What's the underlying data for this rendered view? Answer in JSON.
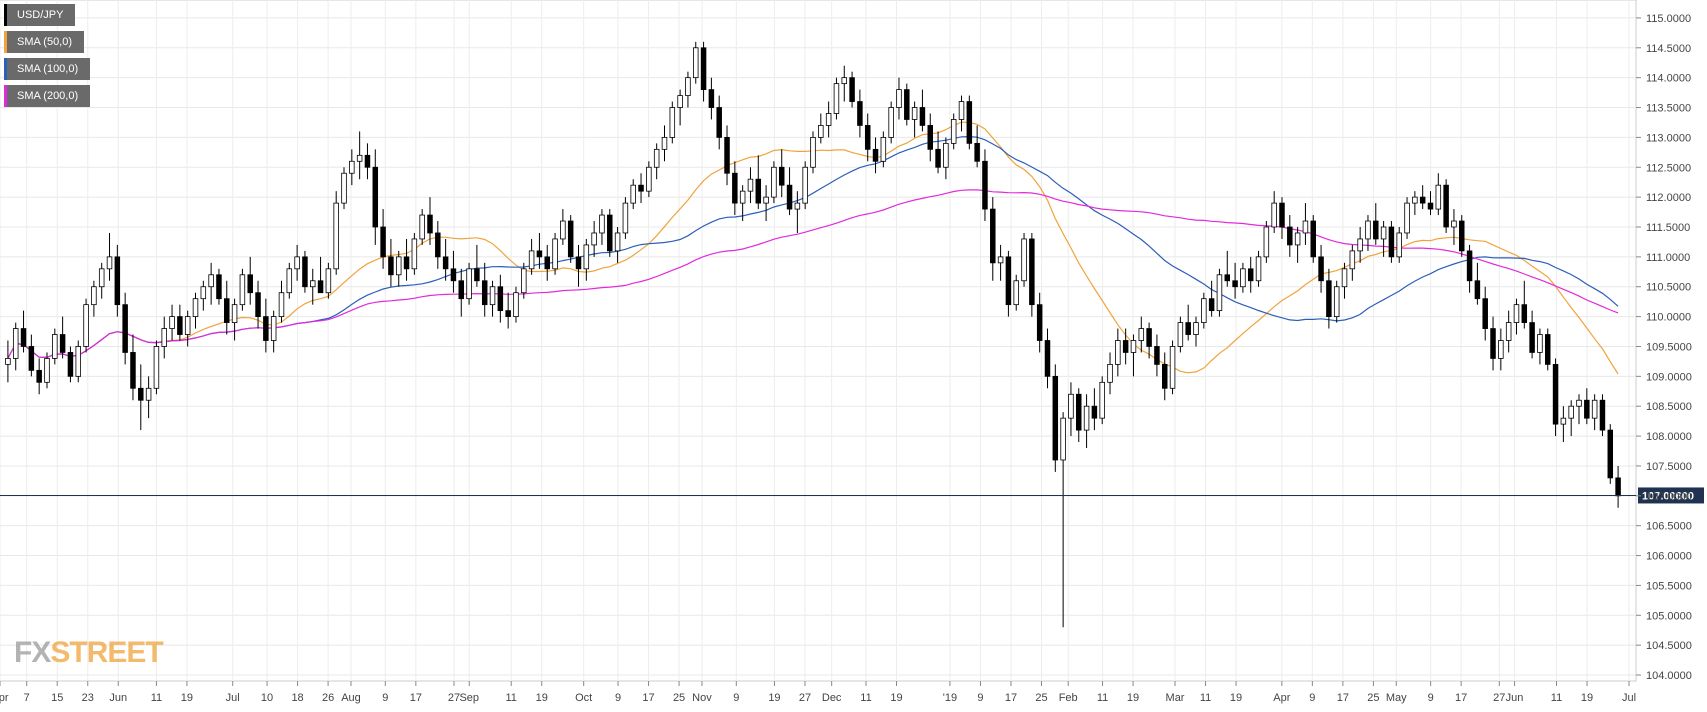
{
  "chart_data": {
    "type": "candlestick",
    "symbol": "USD/JPY",
    "legend": [
      {
        "name": "USD/JPY",
        "color": "#000000"
      },
      {
        "name": "SMA (50,0)",
        "color": "#f0a33c"
      },
      {
        "name": "SMA (100,0)",
        "color": "#2c5fb8"
      },
      {
        "name": "SMA (200,0)",
        "color": "#e12bdb"
      }
    ],
    "ylim": [
      103.9,
      115.3
    ],
    "y_ticks": [
      "115.0000",
      "114.5000",
      "114.0000",
      "113.5000",
      "113.0000",
      "112.5000",
      "112.0000",
      "111.5000",
      "111.0000",
      "110.5000",
      "110.0000",
      "109.5000",
      "109.0000",
      "108.5000",
      "108.0000",
      "107.5000",
      "107.0000",
      "106.5000",
      "106.0000",
      "105.5000",
      "105.0000",
      "104.5000",
      "104.0000"
    ],
    "x_ticks": [
      "Apr",
      "7",
      "15",
      "23",
      "Jun",
      "11",
      "19",
      "Jul",
      "10",
      "18",
      "26",
      "Aug",
      "9",
      "17",
      "27",
      "Sep",
      "11",
      "19",
      "Oct",
      "9",
      "17",
      "25",
      "Nov",
      "9",
      "19",
      "27",
      "Dec",
      "11",
      "19",
      "'19",
      "9",
      "17",
      "25",
      "Feb",
      "11",
      "19",
      "Mar",
      "11",
      "19",
      "Apr",
      "9",
      "17",
      "25",
      "May",
      "9",
      "17",
      "27",
      "Jun",
      "11",
      "19",
      "Jul"
    ],
    "x_tick_days": [
      0,
      7,
      15,
      23,
      31,
      41,
      49,
      61,
      70,
      78,
      86,
      92,
      101,
      109,
      119,
      123,
      134,
      142,
      153,
      162,
      170,
      178,
      184,
      193,
      203,
      211,
      218,
      227,
      235,
      249,
      257,
      265,
      273,
      280,
      289,
      297,
      308,
      316,
      324,
      336,
      344,
      352,
      360,
      366,
      375,
      383,
      393,
      397,
      408,
      416,
      427
    ],
    "current_price": 107.006,
    "current_price_label": "107.00600",
    "watermark": "FXSTREET",
    "ohlc": [
      [
        109.2,
        109.6,
        108.9,
        109.3
      ],
      [
        109.3,
        109.9,
        109.1,
        109.8
      ],
      [
        109.8,
        110.1,
        109.4,
        109.5
      ],
      [
        109.5,
        109.7,
        109.0,
        109.1
      ],
      [
        109.1,
        109.3,
        108.7,
        108.9
      ],
      [
        108.9,
        109.4,
        108.8,
        109.3
      ],
      [
        109.3,
        109.8,
        109.2,
        109.7
      ],
      [
        109.7,
        110.0,
        109.3,
        109.4
      ],
      [
        109.4,
        109.5,
        108.9,
        109.0
      ],
      [
        109.0,
        109.6,
        108.9,
        109.5
      ],
      [
        109.5,
        110.3,
        109.4,
        110.2
      ],
      [
        110.2,
        110.6,
        110.0,
        110.5
      ],
      [
        110.5,
        110.9,
        110.3,
        110.8
      ],
      [
        110.8,
        111.4,
        110.6,
        111.0
      ],
      [
        111.0,
        111.2,
        110.0,
        110.2
      ],
      [
        110.2,
        110.4,
        109.2,
        109.4
      ],
      [
        109.4,
        109.7,
        108.6,
        108.8
      ],
      [
        108.8,
        109.2,
        108.1,
        108.6
      ],
      [
        108.6,
        109.0,
        108.3,
        108.8
      ],
      [
        108.8,
        109.6,
        108.7,
        109.5
      ],
      [
        109.5,
        110.0,
        109.3,
        109.8
      ],
      [
        109.8,
        110.2,
        109.6,
        110.0
      ],
      [
        110.0,
        110.2,
        109.6,
        109.7
      ],
      [
        109.7,
        110.1,
        109.5,
        110.0
      ],
      [
        110.0,
        110.4,
        109.8,
        110.3
      ],
      [
        110.3,
        110.6,
        110.1,
        110.5
      ],
      [
        110.5,
        110.9,
        110.2,
        110.7
      ],
      [
        110.7,
        110.8,
        110.2,
        110.3
      ],
      [
        110.3,
        110.6,
        109.7,
        109.9
      ],
      [
        109.9,
        110.3,
        109.6,
        110.2
      ],
      [
        110.2,
        110.8,
        110.1,
        110.7
      ],
      [
        110.7,
        111.0,
        110.2,
        110.4
      ],
      [
        110.4,
        110.6,
        109.8,
        110.0
      ],
      [
        110.0,
        110.3,
        109.4,
        109.6
      ],
      [
        109.6,
        110.1,
        109.4,
        110.0
      ],
      [
        110.0,
        110.6,
        109.9,
        110.4
      ],
      [
        110.4,
        110.9,
        110.3,
        110.8
      ],
      [
        110.8,
        111.2,
        110.6,
        111.0
      ],
      [
        111.0,
        111.1,
        110.4,
        110.5
      ],
      [
        110.5,
        110.8,
        110.2,
        110.6
      ],
      [
        110.6,
        111.0,
        110.4,
        110.4
      ],
      [
        110.4,
        110.9,
        110.3,
        110.8
      ],
      [
        110.8,
        112.1,
        110.7,
        111.9
      ],
      [
        111.9,
        112.5,
        111.8,
        112.4
      ],
      [
        112.4,
        112.8,
        112.2,
        112.6
      ],
      [
        112.6,
        113.1,
        112.3,
        112.7
      ],
      [
        112.7,
        112.9,
        112.3,
        112.5
      ],
      [
        112.5,
        112.8,
        111.2,
        111.5
      ],
      [
        111.5,
        111.8,
        110.8,
        111.0
      ],
      [
        111.0,
        111.3,
        110.5,
        110.7
      ],
      [
        110.7,
        111.1,
        110.5,
        111.0
      ],
      [
        111.0,
        111.3,
        110.6,
        110.8
      ],
      [
        110.8,
        111.4,
        110.7,
        111.3
      ],
      [
        111.3,
        111.8,
        111.2,
        111.7
      ],
      [
        111.7,
        112.0,
        111.2,
        111.4
      ],
      [
        111.4,
        111.6,
        110.8,
        111.0
      ],
      [
        111.0,
        111.3,
        110.6,
        110.8
      ],
      [
        110.8,
        111.1,
        110.4,
        110.6
      ],
      [
        110.6,
        110.8,
        110.0,
        110.3
      ],
      [
        110.3,
        110.9,
        110.2,
        110.8
      ],
      [
        110.8,
        111.2,
        110.5,
        110.6
      ],
      [
        110.6,
        110.9,
        110.0,
        110.2
      ],
      [
        110.2,
        110.6,
        110.0,
        110.5
      ],
      [
        110.5,
        110.7,
        109.9,
        110.1
      ],
      [
        110.1,
        110.4,
        109.8,
        110.0
      ],
      [
        110.0,
        110.5,
        109.9,
        110.4
      ],
      [
        110.4,
        110.9,
        110.3,
        110.8
      ],
      [
        110.8,
        111.3,
        110.7,
        111.1
      ],
      [
        111.1,
        111.4,
        110.8,
        111.0
      ],
      [
        111.0,
        111.2,
        110.6,
        110.8
      ],
      [
        110.8,
        111.4,
        110.7,
        111.3
      ],
      [
        111.3,
        111.8,
        111.2,
        111.6
      ],
      [
        111.6,
        111.7,
        110.9,
        111.0
      ],
      [
        111.0,
        111.2,
        110.5,
        110.8
      ],
      [
        110.8,
        111.3,
        110.6,
        111.2
      ],
      [
        111.2,
        111.6,
        111.0,
        111.4
      ],
      [
        111.4,
        111.8,
        111.2,
        111.7
      ],
      [
        111.7,
        111.8,
        111.0,
        111.1
      ],
      [
        111.1,
        111.5,
        110.9,
        111.4
      ],
      [
        111.4,
        112.0,
        111.3,
        111.9
      ],
      [
        111.9,
        112.3,
        111.8,
        112.2
      ],
      [
        112.2,
        112.4,
        111.9,
        112.1
      ],
      [
        112.1,
        112.6,
        112.0,
        112.5
      ],
      [
        112.5,
        112.9,
        112.3,
        112.8
      ],
      [
        112.8,
        113.2,
        112.6,
        113.0
      ],
      [
        113.0,
        113.6,
        112.9,
        113.5
      ],
      [
        113.5,
        113.8,
        113.2,
        113.7
      ],
      [
        113.7,
        114.1,
        113.5,
        114.0
      ],
      [
        114.0,
        114.6,
        113.9,
        114.5
      ],
      [
        114.5,
        114.6,
        113.6,
        113.8
      ],
      [
        113.8,
        114.0,
        113.3,
        113.5
      ],
      [
        113.5,
        113.7,
        112.8,
        113.0
      ],
      [
        113.0,
        113.2,
        112.2,
        112.4
      ],
      [
        112.4,
        112.6,
        111.7,
        111.9
      ],
      [
        111.9,
        112.2,
        111.6,
        112.1
      ],
      [
        112.1,
        112.5,
        111.9,
        112.3
      ],
      [
        112.3,
        112.7,
        111.8,
        111.9
      ],
      [
        111.9,
        112.2,
        111.6,
        112.0
      ],
      [
        112.0,
        112.6,
        111.9,
        112.5
      ],
      [
        112.5,
        112.8,
        112.0,
        112.2
      ],
      [
        112.2,
        112.5,
        111.7,
        111.8
      ],
      [
        111.8,
        112.1,
        111.4,
        111.9
      ],
      [
        111.9,
        112.6,
        111.8,
        112.5
      ],
      [
        112.5,
        113.1,
        112.4,
        113.0
      ],
      [
        113.0,
        113.4,
        112.9,
        113.2
      ],
      [
        113.2,
        113.6,
        113.0,
        113.4
      ],
      [
        113.4,
        114.0,
        113.3,
        113.9
      ],
      [
        113.9,
        114.2,
        113.6,
        114.0
      ],
      [
        114.0,
        114.1,
        113.5,
        113.6
      ],
      [
        113.6,
        113.8,
        113.0,
        113.2
      ],
      [
        113.2,
        113.4,
        112.6,
        112.8
      ],
      [
        112.8,
        113.0,
        112.4,
        112.6
      ],
      [
        112.6,
        113.1,
        112.5,
        113.0
      ],
      [
        113.0,
        113.6,
        112.9,
        113.5
      ],
      [
        113.5,
        114.0,
        113.3,
        113.8
      ],
      [
        113.8,
        113.9,
        113.2,
        113.3
      ],
      [
        113.3,
        113.6,
        113.0,
        113.5
      ],
      [
        113.5,
        113.8,
        113.1,
        113.2
      ],
      [
        113.2,
        113.4,
        112.6,
        112.8
      ],
      [
        112.8,
        113.1,
        112.4,
        112.5
      ],
      [
        112.5,
        113.0,
        112.3,
        112.9
      ],
      [
        112.9,
        113.4,
        112.8,
        113.3
      ],
      [
        113.3,
        113.7,
        113.1,
        113.6
      ],
      [
        113.6,
        113.7,
        112.8,
        112.9
      ],
      [
        112.9,
        113.2,
        112.5,
        112.6
      ],
      [
        112.6,
        112.8,
        111.6,
        111.8
      ],
      [
        111.8,
        112.0,
        110.6,
        110.9
      ],
      [
        110.9,
        111.2,
        110.6,
        111.0
      ],
      [
        111.0,
        111.1,
        110.0,
        110.2
      ],
      [
        110.2,
        110.7,
        110.1,
        110.6
      ],
      [
        110.6,
        111.4,
        110.5,
        111.3
      ],
      [
        111.3,
        111.4,
        110.0,
        110.2
      ],
      [
        110.2,
        110.4,
        109.4,
        109.6
      ],
      [
        109.6,
        109.8,
        108.8,
        109.0
      ],
      [
        109.0,
        109.2,
        107.4,
        107.6
      ],
      [
        107.6,
        108.4,
        104.8,
        108.3
      ],
      [
        108.3,
        108.9,
        108.0,
        108.7
      ],
      [
        108.7,
        108.8,
        107.9,
        108.1
      ],
      [
        108.1,
        108.7,
        107.8,
        108.5
      ],
      [
        108.5,
        108.8,
        108.1,
        108.3
      ],
      [
        108.3,
        109.0,
        108.2,
        108.9
      ],
      [
        108.9,
        109.4,
        108.7,
        109.2
      ],
      [
        109.2,
        109.8,
        109.0,
        109.6
      ],
      [
        109.6,
        109.8,
        109.2,
        109.4
      ],
      [
        109.4,
        109.7,
        109.0,
        109.6
      ],
      [
        109.6,
        110.0,
        109.4,
        109.8
      ],
      [
        109.8,
        109.9,
        109.3,
        109.5
      ],
      [
        109.5,
        109.7,
        109.0,
        109.2
      ],
      [
        109.2,
        109.4,
        108.6,
        108.8
      ],
      [
        108.8,
        109.6,
        108.7,
        109.5
      ],
      [
        109.5,
        110.0,
        109.4,
        109.9
      ],
      [
        109.9,
        110.2,
        109.6,
        109.7
      ],
      [
        109.7,
        110.0,
        109.5,
        109.9
      ],
      [
        109.9,
        110.4,
        109.8,
        110.3
      ],
      [
        110.3,
        110.6,
        110.0,
        110.1
      ],
      [
        110.1,
        110.8,
        110.0,
        110.7
      ],
      [
        110.7,
        111.1,
        110.5,
        110.6
      ],
      [
        110.6,
        110.9,
        110.3,
        110.5
      ],
      [
        110.5,
        110.9,
        110.4,
        110.8
      ],
      [
        110.8,
        111.0,
        110.4,
        110.6
      ],
      [
        110.6,
        111.1,
        110.5,
        111.0
      ],
      [
        111.0,
        111.6,
        110.9,
        111.5
      ],
      [
        111.5,
        112.1,
        111.4,
        111.9
      ],
      [
        111.9,
        112.0,
        111.3,
        111.5
      ],
      [
        111.5,
        111.7,
        111.0,
        111.2
      ],
      [
        111.2,
        111.5,
        110.9,
        111.4
      ],
      [
        111.4,
        111.9,
        111.2,
        111.6
      ],
      [
        111.6,
        111.7,
        110.9,
        111.0
      ],
      [
        111.0,
        111.2,
        110.4,
        110.6
      ],
      [
        110.6,
        110.8,
        109.8,
        110.0
      ],
      [
        110.0,
        110.6,
        109.9,
        110.5
      ],
      [
        110.5,
        110.9,
        110.3,
        110.8
      ],
      [
        110.8,
        111.2,
        110.6,
        111.1
      ],
      [
        111.1,
        111.5,
        110.9,
        111.3
      ],
      [
        111.3,
        111.7,
        111.1,
        111.6
      ],
      [
        111.6,
        111.9,
        111.2,
        111.3
      ],
      [
        111.3,
        111.6,
        111.0,
        111.5
      ],
      [
        111.5,
        111.6,
        110.9,
        111.0
      ],
      [
        111.0,
        111.5,
        110.9,
        111.4
      ],
      [
        111.4,
        112.0,
        111.3,
        111.9
      ],
      [
        111.9,
        112.1,
        111.7,
        112.0
      ],
      [
        112.0,
        112.2,
        111.8,
        111.9
      ],
      [
        111.9,
        112.1,
        111.7,
        111.8
      ],
      [
        111.8,
        112.4,
        111.7,
        112.2
      ],
      [
        112.2,
        112.3,
        111.4,
        111.5
      ],
      [
        111.5,
        111.8,
        111.2,
        111.6
      ],
      [
        111.6,
        111.7,
        111.0,
        111.1
      ],
      [
        111.1,
        111.2,
        110.4,
        110.6
      ],
      [
        110.6,
        110.9,
        110.2,
        110.3
      ],
      [
        110.3,
        110.5,
        109.6,
        109.8
      ],
      [
        109.8,
        110.0,
        109.1,
        109.3
      ],
      [
        109.3,
        109.8,
        109.1,
        109.6
      ],
      [
        109.6,
        110.1,
        109.4,
        109.9
      ],
      [
        109.9,
        110.3,
        109.7,
        110.2
      ],
      [
        110.2,
        110.6,
        109.8,
        109.9
      ],
      [
        109.9,
        110.1,
        109.3,
        109.4
      ],
      [
        109.4,
        109.8,
        109.2,
        109.7
      ],
      [
        109.7,
        109.8,
        109.1,
        109.2
      ],
      [
        109.2,
        109.3,
        108.0,
        108.2
      ],
      [
        108.2,
        108.5,
        107.9,
        108.3
      ],
      [
        108.3,
        108.6,
        108.0,
        108.5
      ],
      [
        108.5,
        108.7,
        108.2,
        108.6
      ],
      [
        108.6,
        108.8,
        108.2,
        108.3
      ],
      [
        108.3,
        108.7,
        108.1,
        108.6
      ],
      [
        108.6,
        108.7,
        108.0,
        108.1
      ],
      [
        108.1,
        108.2,
        107.2,
        107.3
      ],
      [
        107.3,
        107.5,
        106.8,
        107.0
      ]
    ]
  }
}
